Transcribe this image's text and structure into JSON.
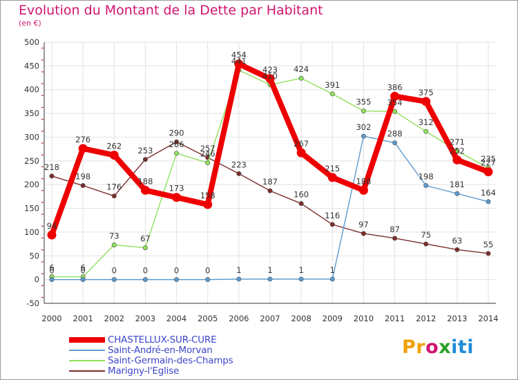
{
  "title": "Evolution du Montant de la Dette par Habitant",
  "subtitle": "(en €)",
  "logo_text": "Proxiti",
  "chart_data": {
    "type": "line",
    "title": "Evolution du Montant de la Dette par Habitant",
    "subtitle": "(en €)",
    "xlabel": "",
    "ylabel": "",
    "x": [
      2000,
      2001,
      2002,
      2003,
      2004,
      2005,
      2006,
      2007,
      2008,
      2009,
      2010,
      2011,
      2012,
      2013,
      2014
    ],
    "ylim": [
      -50,
      500
    ],
    "yticks": [
      -50,
      0,
      50,
      100,
      150,
      200,
      250,
      300,
      350,
      400,
      450,
      500
    ],
    "grid": true,
    "legend_position": "bottom",
    "series": [
      {
        "name": "CHASTELLUX-SUR-CURE",
        "color": "#ee0000",
        "values": [
          94,
          276,
          262,
          188,
          173,
          158,
          454,
          423,
          267,
          215,
          188,
          386,
          375,
          252,
          227
        ]
      },
      {
        "name": "Saint-André-en-Morvan",
        "color": "#5b9bd0",
        "values": [
          0,
          0,
          0,
          0,
          0,
          0,
          1,
          1,
          1,
          1,
          302,
          288,
          198,
          181,
          164
        ]
      },
      {
        "name": "Saint-Germain-des-Champs",
        "color": "#8ee05b",
        "values": [
          6,
          6,
          73,
          67,
          266,
          246,
          441,
          410,
          424,
          391,
          355,
          354,
          312,
          271,
          235
        ]
      },
      {
        "name": "Marigny-l'Eglise",
        "color": "#7b2c2c",
        "values": [
          218,
          198,
          176,
          253,
          290,
          257,
          223,
          187,
          160,
          116,
          97,
          87,
          75,
          63,
          55
        ]
      }
    ]
  }
}
